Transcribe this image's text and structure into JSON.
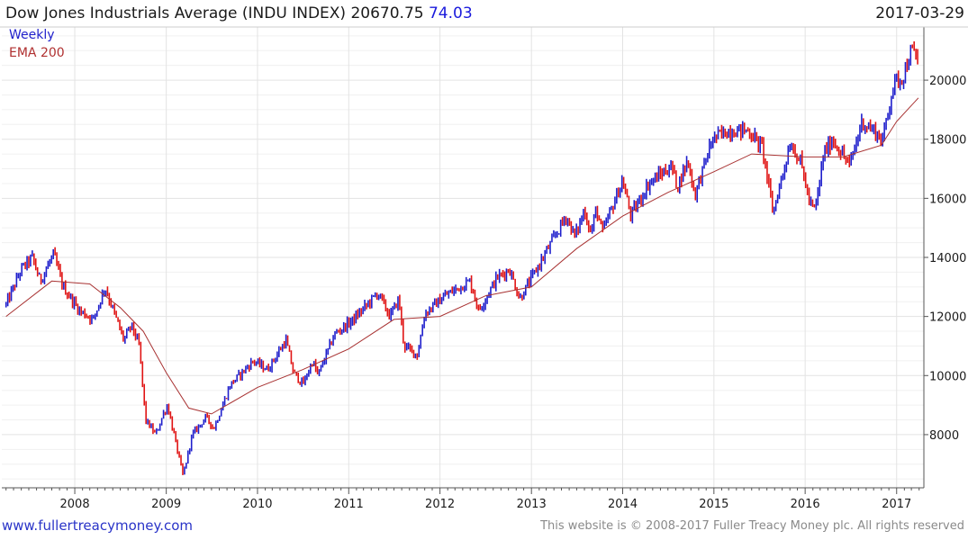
{
  "header": {
    "title_prefix": "Dow Jones Industrials Average (INDU INDEX) 20670.75",
    "change": "74.03",
    "date": "2017-03-29"
  },
  "legend": {
    "weekly": "Weekly",
    "ema": "EMA 200"
  },
  "footer": {
    "site": "www.fullertreacymoney.com",
    "copyright": "This website is © 2008-2017 Fuller Treacy Money plc. All rights reserved"
  },
  "colors": {
    "up": "#1f1fcc",
    "down": "#e01414",
    "ema": "#a83232",
    "grid": "#e3e3e3",
    "axis": "#555555"
  },
  "chart_data": {
    "type": "line",
    "series": [
      {
        "name": "Weekly",
        "x": [
          "2007-04-01",
          "2007-06-01",
          "2007-07-15",
          "2007-08-15",
          "2007-10-08",
          "2007-11-15",
          "2008-01-20",
          "2008-03-15",
          "2008-05-01",
          "2008-07-15",
          "2008-08-15",
          "2008-09-15",
          "2008-10-10",
          "2008-11-20",
          "2008-12-20",
          "2009-01-06",
          "2009-03-09",
          "2009-04-15",
          "2009-06-10",
          "2009-07-10",
          "2009-09-15",
          "2009-12-15",
          "2010-02-10",
          "2010-04-25",
          "2010-05-25",
          "2010-07-02",
          "2010-08-10",
          "2010-08-30",
          "2010-11-05",
          "2011-01-20",
          "2011-04-28",
          "2011-06-15",
          "2011-07-20",
          "2011-08-10",
          "2011-10-03",
          "2011-11-01",
          "2012-01-20",
          "2012-05-01",
          "2012-06-04",
          "2012-08-15",
          "2012-10-05",
          "2012-11-15",
          "2013-01-15",
          "2013-05-20",
          "2013-06-24",
          "2013-08-01",
          "2013-08-28",
          "2013-09-18",
          "2013-10-10",
          "2013-12-31",
          "2014-02-03",
          "2014-04-15",
          "2014-07-16",
          "2014-08-07",
          "2014-09-19",
          "2014-10-16",
          "2014-12-26",
          "2015-03-02",
          "2015-05-19",
          "2015-07-15",
          "2015-08-25",
          "2015-11-03",
          "2015-12-15",
          "2016-01-20",
          "2016-02-11",
          "2016-03-15",
          "2016-04-20",
          "2016-06-27",
          "2016-08-15",
          "2016-10-15",
          "2016-11-04",
          "2016-12-20",
          "2017-01-25",
          "2017-03-01",
          "2017-03-29"
        ],
        "values": [
          12400,
          13600,
          14000,
          13200,
          14100,
          13000,
          12200,
          11900,
          13000,
          11200,
          11700,
          11000,
          8500,
          8000,
          8700,
          9000,
          6600,
          8000,
          8600,
          8200,
          9700,
          10500,
          10200,
          11200,
          10100,
          9700,
          10500,
          10000,
          11400,
          11900,
          12800,
          12000,
          12600,
          11000,
          10700,
          12100,
          12700,
          13200,
          12200,
          13300,
          13600,
          12600,
          13500,
          15400,
          14700,
          15600,
          14800,
          15700,
          14800,
          16600,
          15400,
          16500,
          17100,
          16400,
          17300,
          16100,
          18000,
          18300,
          18300,
          17700,
          15500,
          17900,
          17200,
          15800,
          15600,
          17500,
          18000,
          17100,
          18600,
          18200,
          17900,
          19900,
          20100,
          21000,
          20670
        ]
      },
      {
        "name": "EMA 200",
        "x": [
          "2007-04-01",
          "2007-10-01",
          "2008-03-01",
          "2008-07-01",
          "2008-10-01",
          "2009-01-01",
          "2009-04-01",
          "2009-07-01",
          "2010-01-01",
          "2010-07-01",
          "2011-01-01",
          "2011-07-01",
          "2012-01-01",
          "2012-07-01",
          "2013-01-01",
          "2013-07-01",
          "2014-01-01",
          "2014-07-01",
          "2015-01-01",
          "2015-06-01",
          "2016-01-01",
          "2016-06-01",
          "2016-11-01",
          "2017-01-01",
          "2017-03-29"
        ],
        "values": [
          12000,
          13200,
          13100,
          12300,
          11500,
          10100,
          8900,
          8700,
          9600,
          10200,
          10900,
          11900,
          12000,
          12700,
          13000,
          14300,
          15400,
          16200,
          16900,
          17500,
          17400,
          17400,
          17800,
          18600,
          19400
        ]
      }
    ],
    "xlim": [
      "2007-03-15",
      "2017-04-20"
    ],
    "ylim": [
      6200,
      21800
    ],
    "x_ticks": [
      "2008",
      "2009",
      "2010",
      "2011",
      "2012",
      "2013",
      "2014",
      "2015",
      "2016",
      "2017"
    ],
    "y_ticks": [
      8000,
      10000,
      12000,
      14000,
      16000,
      18000,
      20000
    ],
    "grid": true,
    "legend_position": "top-left"
  }
}
